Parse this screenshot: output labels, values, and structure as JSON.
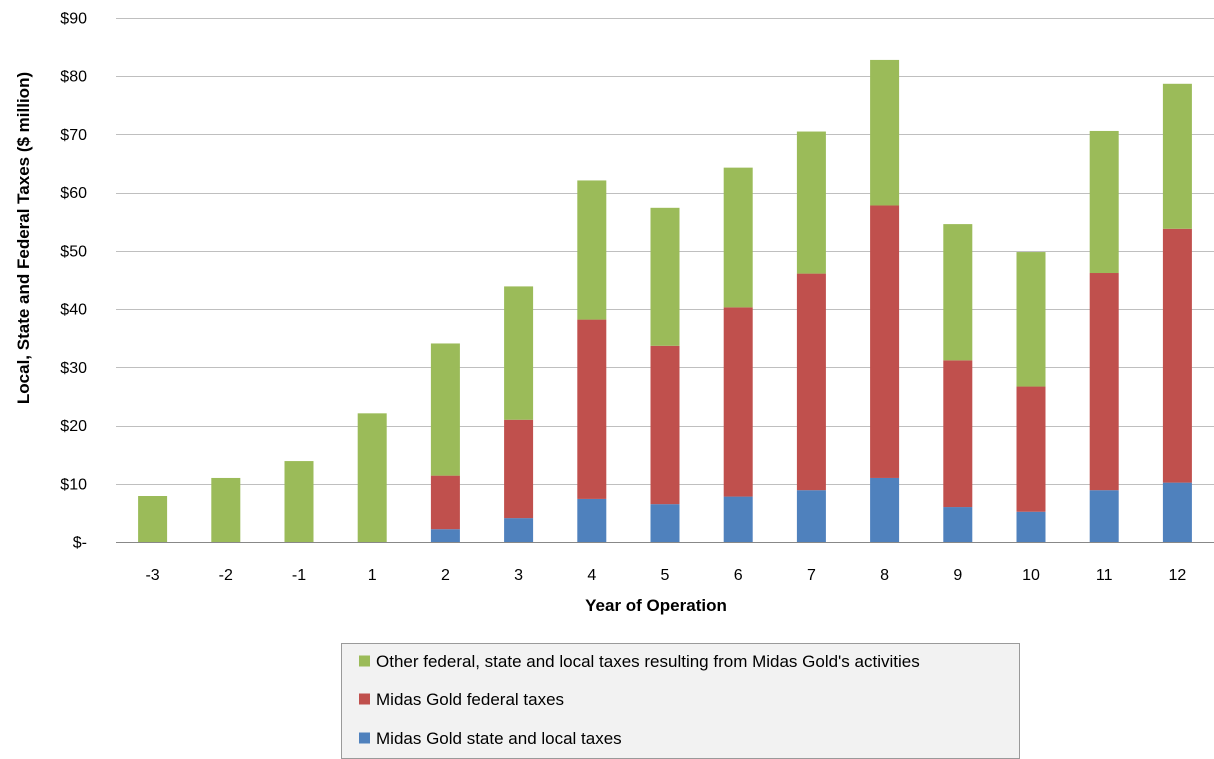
{
  "chart_data": {
    "type": "bar",
    "stacked": true,
    "categories": [
      "-3",
      "-2",
      "-1",
      "1",
      "2",
      "3",
      "4",
      "5",
      "6",
      "7",
      "8",
      "9",
      "10",
      "11",
      "12"
    ],
    "series": [
      {
        "name": "Midas Gold state and local taxes",
        "color": "#4F81BD",
        "values": [
          0,
          0,
          0,
          0,
          2.2,
          4.1,
          7.4,
          6.5,
          7.8,
          8.9,
          11.0,
          6.0,
          5.2,
          8.9,
          10.2
        ]
      },
      {
        "name": "Midas Gold federal taxes",
        "color": "#C0504D",
        "values": [
          0,
          0,
          0,
          0,
          9.2,
          16.9,
          30.8,
          27.2,
          32.5,
          37.2,
          46.8,
          25.2,
          21.5,
          37.3,
          43.6
        ]
      },
      {
        "name": "Other federal, state and local taxes resulting from Midas Gold's activities",
        "color": "#9BBB59",
        "values": [
          7.9,
          11.0,
          13.9,
          22.1,
          22.7,
          22.9,
          23.9,
          23.7,
          24.0,
          24.4,
          25.0,
          23.4,
          23.1,
          24.4,
          24.9
        ]
      }
    ],
    "xlabel": "Year of Operation",
    "ylabel": "Local, State and Federal Taxes ($ million)",
    "ylim": [
      0,
      90
    ],
    "yticks": [
      0,
      10,
      20,
      30,
      40,
      50,
      60,
      70,
      80,
      90
    ],
    "ytick_labels": [
      "$-",
      "$10",
      "$20",
      "$30",
      "$40",
      "$50",
      "$60",
      "$70",
      "$80",
      "$90"
    ],
    "grid": true,
    "legend_position": "bottom",
    "legend_order": [
      2,
      1,
      0
    ]
  }
}
